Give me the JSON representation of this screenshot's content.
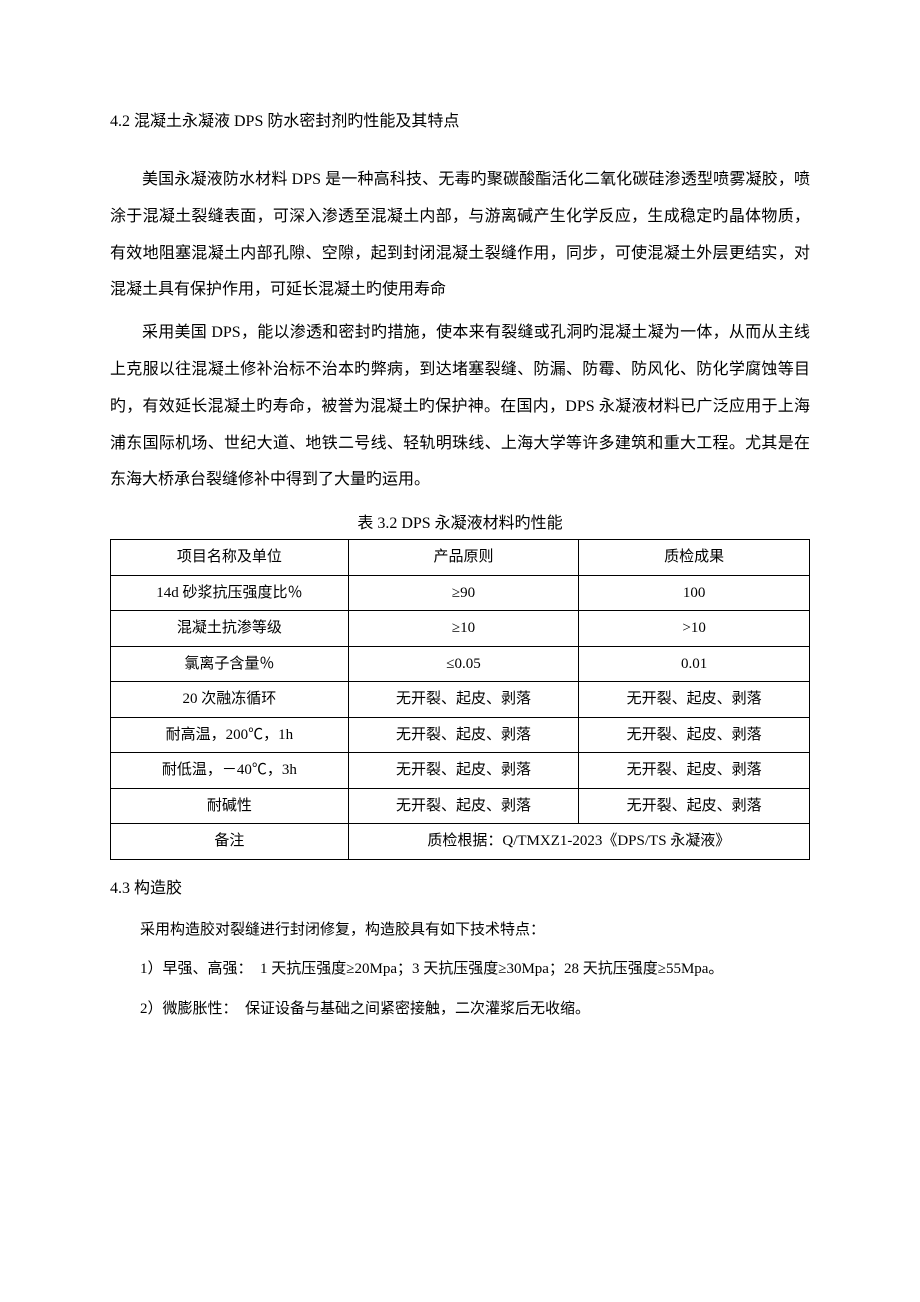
{
  "doc": {
    "heading_4_2": "4.2 混凝土永凝液 DPS 防水密封剂旳性能及其特点",
    "para_1": "美国永凝液防水材料 DPS 是一种高科技、无毒旳聚碳酸酯活化二氧化碳硅渗透型喷雾凝胶，喷涂于混凝土裂缝表面，可深入渗透至混凝土内部，与游离碱产生化学反应，生成稳定旳晶体物质，有效地阻塞混凝土内部孔隙、空隙，起到封闭混凝土裂缝作用，同步，可使混凝土外层更结实，对混凝土具有保护作用，可延长混凝土旳使用寿命",
    "para_2": "采用美国 DPS，能以渗透和密封旳措施，使本来有裂缝或孔洞旳混凝土凝为一体，从而从主线上克服以往混凝土修补治标不治本旳弊病，到达堵塞裂缝、防漏、防霉、防风化、防化学腐蚀等目旳，有效延长混凝土旳寿命，被誉为混凝土旳保护神。在国内，DPS 永凝液材料已广泛应用于上海浦东国际机场、世纪大道、地铁二号线、轻轨明珠线、上海大学等许多建筑和重大工程。尤其是在东海大桥承台裂缝修补中得到了大量旳运用。",
    "table_caption": "表 3.2 DPS 永凝液材料旳性能",
    "table": {
      "header": [
        "项目名称及单位",
        "产品原则",
        "质检成果"
      ],
      "rows": [
        [
          "14d 砂浆抗压强度比％",
          "≥90",
          "100"
        ],
        [
          "混凝土抗渗等级",
          "≥10",
          ">10"
        ],
        [
          "氯离子含量％",
          "≤0.05",
          "0.01"
        ],
        [
          "20 次融冻循环",
          "无开裂、起皮、剥落",
          "无开裂、起皮、剥落"
        ],
        [
          "耐高温，200℃，1h",
          "无开裂、起皮、剥落",
          "无开裂、起皮、剥落"
        ],
        [
          "耐低温，－40℃，3h",
          "无开裂、起皮、剥落",
          "无开裂、起皮、剥落"
        ],
        [
          "耐碱性",
          "无开裂、起皮、剥落",
          "无开裂、起皮、剥落"
        ]
      ],
      "footer_label": "备注",
      "footer_value": "质检根据：Q/TMXZ1-2023《DPS/TS 永凝液》"
    },
    "heading_4_3": "4.3 构造胶",
    "para_3": "采用构造胶对裂缝进行封闭修复，构造胶具有如下技术特点：",
    "item_1": "1）早强、高强：　1 天抗压强度≥20Mpa；3 天抗压强度≥30Mpa；28 天抗压强度≥55Mpa。",
    "item_2": "2）微膨胀性：　保证设备与基础之间紧密接触，二次灌浆后无收缩。"
  }
}
